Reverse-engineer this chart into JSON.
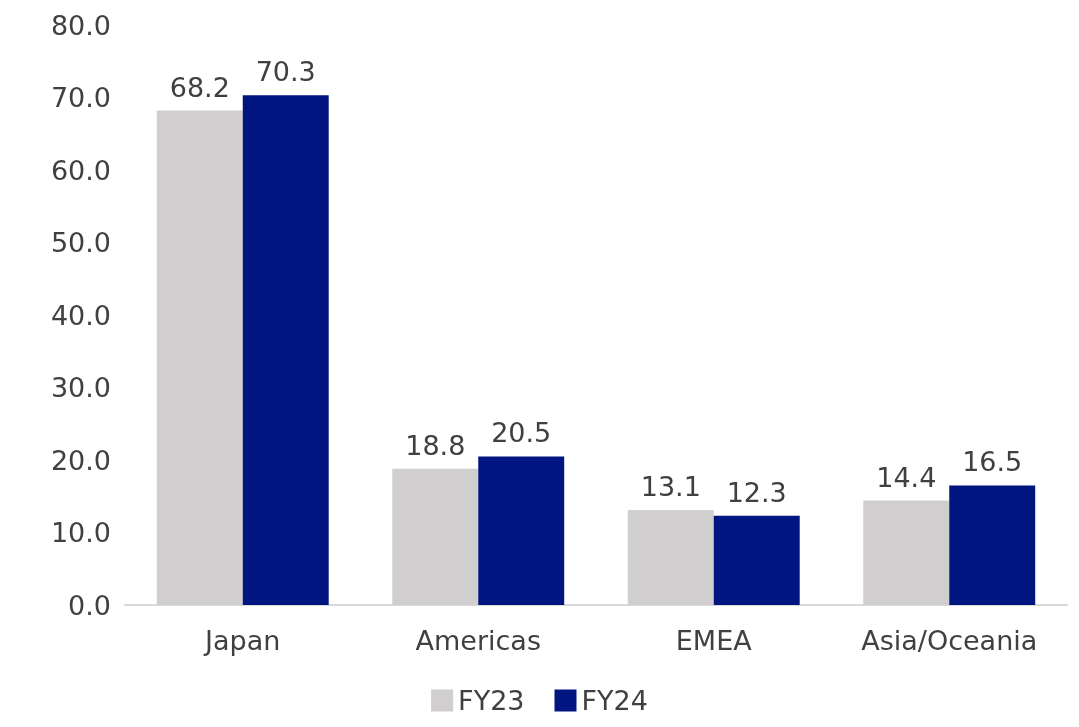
{
  "chart_data": {
    "type": "bar",
    "categories": [
      "Japan",
      "Americas",
      "EMEA",
      "Asia/Oceania"
    ],
    "series": [
      {
        "name": "FY23",
        "color": "#d0cece",
        "values": [
          68.2,
          18.8,
          13.1,
          14.4
        ]
      },
      {
        "name": "FY24",
        "color": "#001580",
        "values": [
          70.3,
          20.5,
          12.3,
          16.5
        ]
      }
    ],
    "ylim": [
      0,
      80
    ],
    "yticks": [
      {
        "value": 0,
        "label": "0.0"
      },
      {
        "value": 10,
        "label": "10.0"
      },
      {
        "value": 20,
        "label": "20.0"
      },
      {
        "value": 30,
        "label": "30.0"
      },
      {
        "value": 40,
        "label": "40.0"
      },
      {
        "value": 50,
        "label": "50.0"
      },
      {
        "value": 60,
        "label": "60.0"
      },
      {
        "value": 70,
        "label": "70.0"
      },
      {
        "value": 80,
        "label": "80.0"
      }
    ],
    "data_labels": true,
    "grid": false,
    "legend": "bottom"
  }
}
